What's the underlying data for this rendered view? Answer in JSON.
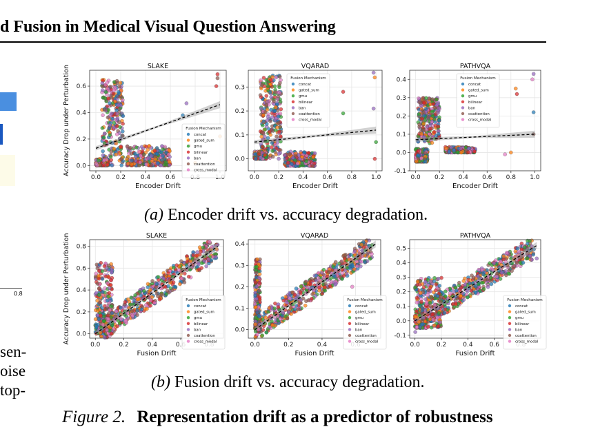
{
  "header": {
    "title": "d Fusion in Medical Visual Question Answering"
  },
  "left_column": {
    "axis_tick": "0.8",
    "text_lines": [
      "sen-",
      "oise",
      "top-"
    ]
  },
  "captions": {
    "a_label": "(a)",
    "a_text": "Encoder drift vs. accuracy degradation.",
    "b_label": "(b)",
    "b_text": "Fusion drift vs. accuracy degradation.",
    "figure_label": "Figure 2.",
    "figure_title": "Representation drift as a predictor of robustness"
  },
  "chart_data": [
    {
      "type": "scatter",
      "title": "SLAKE",
      "xlabel": "Encoder Drift",
      "ylabel": "Accuracy Drop under Perturbation",
      "xlim": [
        -0.05,
        1.05
      ],
      "ylim": [
        -0.04,
        0.72
      ],
      "xticks": [
        0.0,
        0.2,
        0.4,
        0.6,
        0.8,
        1.0
      ],
      "yticks": [
        0.0,
        0.2,
        0.4,
        0.6
      ],
      "legend_title": "Fusion Mechanism",
      "legend_position": "lower-right",
      "grid": true,
      "fit_line": [
        [
          0.0,
          0.13
        ],
        [
          1.0,
          0.46
        ]
      ],
      "clusters": [
        {
          "x": [
            0.05,
            0.22
          ],
          "y": [
            0.0,
            0.65
          ]
        },
        {
          "x": [
            0.25,
            0.6
          ],
          "y": [
            0.0,
            0.15
          ]
        },
        {
          "x": [
            0.0,
            0.1
          ],
          "y": [
            0.0,
            0.05
          ]
        }
      ],
      "outliers": [
        [
          0.7,
          0.38
        ],
        [
          0.73,
          0.47
        ],
        [
          0.98,
          0.66
        ],
        [
          0.98,
          0.69
        ],
        [
          0.97,
          0.6
        ],
        [
          1.0,
          0.22
        ],
        [
          0.75,
          0.15
        ],
        [
          0.8,
          0.02
        ]
      ]
    },
    {
      "type": "scatter",
      "title": "VQARAD",
      "xlabel": "Encoder Drift",
      "ylabel": "",
      "xlim": [
        -0.05,
        1.05
      ],
      "ylim": [
        -0.05,
        0.37
      ],
      "xticks": [
        0.0,
        0.2,
        0.4,
        0.6,
        0.8,
        1.0
      ],
      "yticks": [
        0.0,
        0.1,
        0.2,
        0.3
      ],
      "legend_title": "Fusion Mechanism",
      "legend_position": "top-right",
      "grid": true,
      "fit_line": [
        [
          0.0,
          0.07
        ],
        [
          1.0,
          0.12
        ]
      ],
      "clusters": [
        {
          "x": [
            0.05,
            0.22
          ],
          "y": [
            0.0,
            0.35
          ]
        },
        {
          "x": [
            0.25,
            0.5
          ],
          "y": [
            -0.03,
            0.03
          ]
        },
        {
          "x": [
            0.0,
            0.1
          ],
          "y": [
            0.0,
            0.03
          ]
        }
      ],
      "outliers": [
        [
          0.73,
          0.28
        ],
        [
          0.73,
          0.19
        ],
        [
          0.98,
          0.36
        ],
        [
          0.99,
          0.34
        ],
        [
          0.98,
          0.21
        ],
        [
          1.0,
          0.07
        ],
        [
          0.99,
          0.0
        ]
      ]
    },
    {
      "type": "scatter",
      "title": "PATHVQA",
      "xlabel": "Encoder Drift",
      "ylabel": "",
      "xlim": [
        -0.05,
        1.05
      ],
      "ylim": [
        -0.1,
        0.45
      ],
      "xticks": [
        0.0,
        0.2,
        0.4,
        0.6,
        0.8,
        1.0
      ],
      "yticks": [
        -0.1,
        0.0,
        0.1,
        0.2,
        0.3,
        0.4
      ],
      "legend_title": "Fusion Mechanism",
      "legend_position": "top-right",
      "grid": true,
      "fit_line": [
        [
          0.0,
          0.07
        ],
        [
          1.0,
          0.1
        ]
      ],
      "clusters": [
        {
          "x": [
            0.02,
            0.2
          ],
          "y": [
            0.05,
            0.3
          ]
        },
        {
          "x": [
            0.25,
            0.5
          ],
          "y": [
            0.0,
            0.03
          ]
        },
        {
          "x": [
            0.0,
            0.1
          ],
          "y": [
            -0.05,
            0.02
          ]
        }
      ],
      "outliers": [
        [
          0.85,
          0.32
        ],
        [
          0.84,
          0.35
        ],
        [
          0.99,
          0.43
        ],
        [
          0.98,
          0.4
        ],
        [
          0.99,
          0.22
        ],
        [
          0.99,
          0.1
        ],
        [
          0.8,
          0.0
        ],
        [
          0.75,
          -0.01
        ]
      ]
    },
    {
      "type": "scatter",
      "title": "SLAKE",
      "xlabel": "Fusion Drift",
      "ylabel": "Accuracy Drop under Perturbation",
      "xlim": [
        -0.04,
        0.9
      ],
      "ylim": [
        -0.04,
        0.86
      ],
      "xticks": [
        0.0,
        0.2,
        0.4,
        0.6,
        0.8
      ],
      "yticks": [
        0.0,
        0.2,
        0.4,
        0.6,
        0.8
      ],
      "legend_title": "Fusion Mechanism",
      "legend_position": "lower-right",
      "grid": true,
      "fit_line": [
        [
          0.0,
          0.0
        ],
        [
          0.86,
          0.8
        ]
      ],
      "clusters": [
        {
          "x": [
            0.0,
            0.86
          ],
          "y": [
            0.0,
            0.7
          ],
          "band": true
        },
        {
          "x": [
            0.0,
            0.12
          ],
          "y": [
            0.0,
            0.65
          ]
        }
      ],
      "outliers": []
    },
    {
      "type": "scatter",
      "title": "VQARAD",
      "xlabel": "Fusion Drift",
      "ylabel": "",
      "xlim": [
        -0.04,
        0.75
      ],
      "ylim": [
        -0.04,
        0.42
      ],
      "xticks": [
        0.0,
        0.2,
        0.4,
        0.6
      ],
      "yticks": [
        0.0,
        0.1,
        0.2,
        0.3,
        0.4
      ],
      "legend_title": "Fusion Mechanism",
      "legend_position": "lower-right",
      "grid": true,
      "fit_line": [
        [
          0.0,
          0.0
        ],
        [
          0.72,
          0.4
        ]
      ],
      "clusters": [
        {
          "x": [
            0.0,
            0.7
          ],
          "y": [
            0.0,
            0.35
          ],
          "band": true
        },
        {
          "x": [
            0.0,
            0.03
          ],
          "y": [
            0.0,
            0.33
          ]
        }
      ],
      "outliers": [
        [
          0.58,
          0.2
        ]
      ]
    },
    {
      "type": "scatter",
      "title": "PATHVQA",
      "xlabel": "Fusion Drift",
      "ylabel": "",
      "xlim": [
        -0.04,
        0.95
      ],
      "ylim": [
        -0.12,
        0.56
      ],
      "xticks": [
        0.0,
        0.2,
        0.4,
        0.6,
        0.8
      ],
      "yticks": [
        -0.1,
        0.0,
        0.1,
        0.2,
        0.3,
        0.4,
        0.5
      ],
      "legend_title": "Fusion Mechanism",
      "legend_position": "lower-right",
      "grid": true,
      "fit_line": [
        [
          0.0,
          0.0
        ],
        [
          0.92,
          0.52
        ]
      ],
      "clusters": [
        {
          "x": [
            0.0,
            0.9
          ],
          "y": [
            -0.05,
            0.45
          ],
          "band": true
        },
        {
          "x": [
            0.0,
            0.2
          ],
          "y": [
            -0.05,
            0.3
          ]
        }
      ],
      "outliers": [
        [
          0.92,
          0.43
        ]
      ]
    }
  ],
  "legend": {
    "title": "Fusion Mechanism",
    "entries": [
      {
        "name": "concat",
        "color": "#1f77b4"
      },
      {
        "name": "gated_sum",
        "color": "#ff7f0e"
      },
      {
        "name": "gmu",
        "color": "#2ca02c"
      },
      {
        "name": "bilinear",
        "color": "#d62728"
      },
      {
        "name": "ban",
        "color": "#9467bd"
      },
      {
        "name": "coattention",
        "color": "#8c564b"
      },
      {
        "name": "cross_modal",
        "color": "#e377c2"
      }
    ]
  }
}
